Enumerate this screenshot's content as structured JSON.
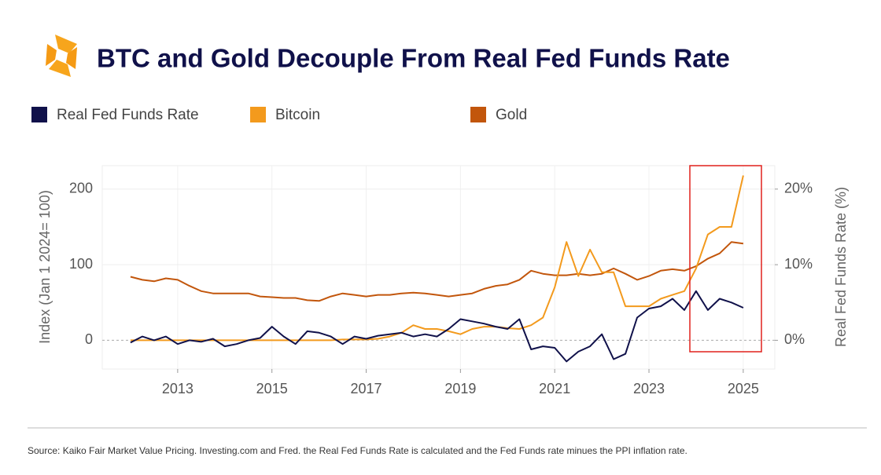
{
  "chart_data": {
    "type": "line",
    "title": "BTC and Gold Decouple From Real Fed Funds Rate",
    "ylabel": "Index (Jan 1 2024= 100)",
    "y2label": "Real Fed Funds Rate (%)",
    "source": "Source: Kaiko Fair Market Value Pricing. Investing.com and Fred. the Real Fed Funds Rate is calculated and the Fed Funds rate minues the PPI inflation rate.",
    "x": [
      2012,
      2012.25,
      2012.5,
      2012.75,
      2013,
      2013.25,
      2013.5,
      2013.75,
      2014,
      2014.25,
      2014.5,
      2014.75,
      2015,
      2015.25,
      2015.5,
      2015.75,
      2016,
      2016.25,
      2016.5,
      2016.75,
      2017,
      2017.25,
      2017.5,
      2017.75,
      2018,
      2018.25,
      2018.5,
      2018.75,
      2019,
      2019.25,
      2019.5,
      2019.75,
      2020,
      2020.25,
      2020.5,
      2020.75,
      2021,
      2021.25,
      2021.5,
      2021.75,
      2022,
      2022.25,
      2022.5,
      2022.75,
      2023,
      2023.25,
      2023.5,
      2023.75,
      2024,
      2024.25,
      2024.5,
      2024.75,
      2025
    ],
    "xlim": [
      2011.4,
      2025.67
    ],
    "xticks": [
      2013,
      2015,
      2017,
      2019,
      2021,
      2023,
      2025
    ],
    "ylim": [
      -38,
      231
    ],
    "yticks": [
      0,
      100,
      200
    ],
    "y2lim": [
      -3.8,
      23.1
    ],
    "y2ticks": [
      {
        "value": 0,
        "label": "0%"
      },
      {
        "value": 10,
        "label": "10%"
      },
      {
        "value": 20,
        "label": "20%"
      }
    ],
    "grid": true,
    "series": [
      {
        "name": "Real Fed Funds Rate",
        "color": "#10114a",
        "axis": "y2",
        "values": [
          -0.3,
          0.5,
          0,
          0.5,
          -0.5,
          0,
          -0.2,
          0.2,
          -0.8,
          -0.5,
          0,
          0.3,
          1.8,
          0.5,
          -0.5,
          1.2,
          1.0,
          0.5,
          -0.5,
          0.5,
          0.2,
          0.6,
          0.8,
          1.0,
          0.5,
          0.8,
          0.5,
          1.5,
          2.8,
          2.5,
          2.2,
          1.8,
          1.5,
          2.8,
          -1.2,
          -0.8,
          -1.0,
          -2.8,
          -1.5,
          -0.8,
          0.8,
          -2.5,
          -1.8,
          3.0,
          4.2,
          4.5,
          5.5,
          4.0,
          6.5,
          4.0,
          5.5,
          5.0,
          4.3
        ]
      },
      {
        "name": "Bitcoin",
        "color": "#f39a1d",
        "values": [
          0,
          0,
          0,
          0,
          0,
          0,
          0,
          0,
          0,
          0,
          0,
          0,
          0,
          0,
          0,
          0,
          0,
          0,
          1,
          1,
          1,
          2,
          5,
          10,
          20,
          15,
          15,
          12,
          8,
          15,
          18,
          18,
          16,
          15,
          20,
          30,
          70,
          130,
          85,
          120,
          90,
          90,
          45,
          45,
          45,
          55,
          60,
          65,
          95,
          140,
          150,
          150,
          218
        ]
      },
      {
        "name": "Gold",
        "color": "#c2560c",
        "values": [
          84,
          80,
          78,
          82,
          80,
          72,
          65,
          62,
          62,
          62,
          62,
          58,
          57,
          56,
          56,
          53,
          52,
          58,
          62,
          60,
          58,
          60,
          60,
          62,
          63,
          62,
          60,
          58,
          60,
          62,
          68,
          72,
          74,
          80,
          92,
          88,
          86,
          86,
          88,
          86,
          88,
          95,
          88,
          80,
          85,
          92,
          94,
          92,
          98,
          108,
          115,
          130,
          128
        ]
      }
    ]
  }
}
